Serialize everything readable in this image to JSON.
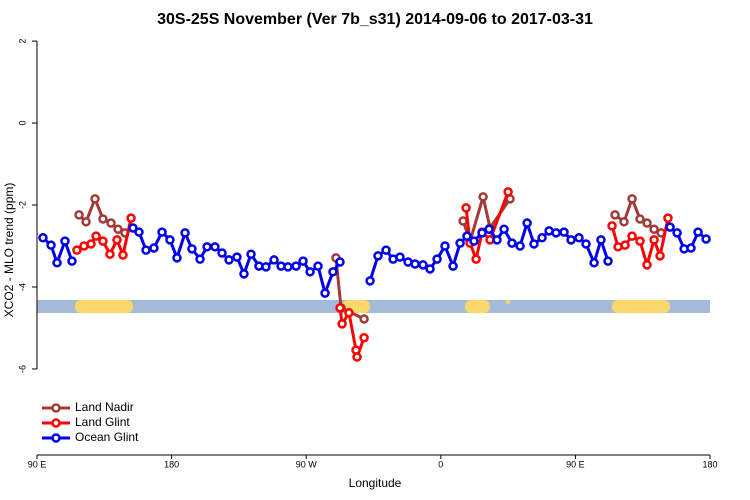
{
  "chart_data": {
    "type": "line",
    "title": "30S-25S November (Ver 7b_s31)   2014-09-06 to 2017-03-31",
    "x_label": "Longitude",
    "y_label": "XCO2 - MLO trend (ppm)",
    "xlim": [
      90,
      540
    ],
    "ylim": [
      -8.1,
      2.1
    ],
    "xticks": [
      {
        "value": 90,
        "label": "90 E"
      },
      180,
      {
        "value": 270,
        "label": "90 W"
      },
      {
        "value": 360,
        "label": "0"
      },
      {
        "value": 450,
        "label": "90 E"
      },
      {
        "value": 540,
        "label": "180"
      }
    ],
    "yticks": [
      2,
      0,
      -2,
      -4,
      -6
    ],
    "legend": "bottom-left",
    "series": [
      {
        "name": "Land Nadir",
        "color": "#a33a35",
        "x": [
          118.1,
          122.8,
          128.8,
          134.1,
          139.5,
          144.2,
          148.8,
          220,
          289.9,
          293.3,
          308.7,
          340,
          374.9,
          379.6,
          388.3,
          392.9,
          406.3,
          440,
          476.5,
          482.5,
          487.9,
          493.2,
          497.9,
          502.6,
          507.3
        ],
        "values": [
          -2.24,
          -2.41,
          -1.85,
          -2.34,
          -2.44,
          -2.59,
          -2.68,
          null,
          -3.29,
          -4.51,
          -4.78,
          null,
          -2.39,
          -2.88,
          -1.8,
          -2.56,
          -1.85,
          null,
          -2.24,
          -2.41,
          -1.85,
          -2.34,
          -2.44,
          -2.59,
          -2.68
        ]
      },
      {
        "name": "Land Glint",
        "color": "#ff0000",
        "x": [
          116.7,
          121.4,
          126.1,
          129.5,
          134.1,
          138.8,
          143.5,
          147.5,
          152.9,
          220,
          292.6,
          294.0,
          298.6,
          303.3,
          304.0,
          308.7,
          340,
          376.9,
          379.6,
          383.6,
          387.6,
          392.9,
          405.0,
          440,
          474.5,
          478.5,
          483.2,
          487.9,
          493.2,
          497.9,
          502.6,
          506.6,
          511.9
        ],
        "values": [
          -3.1,
          -3.0,
          -2.95,
          -2.76,
          -2.88,
          -3.2,
          -2.85,
          -3.22,
          -2.32,
          null,
          -4.51,
          -4.9,
          -4.63,
          -5.54,
          -5.71,
          -5.24,
          null,
          -2.07,
          -2.93,
          -3.32,
          -2.66,
          -2.85,
          -1.68,
          null,
          -2.51,
          -3.02,
          -2.98,
          -2.76,
          -2.88,
          -3.46,
          -2.85,
          -3.24,
          -2.32
        ]
      },
      {
        "name": "Ocean Glint",
        "color": "#0000ee",
        "x": [
          94.0,
          99.4,
          103.4,
          108.7,
          113.4,
          130,
          154.2,
          158.2,
          162.9,
          168.2,
          173.6,
          178.9,
          183.6,
          189.0,
          193.6,
          199.0,
          203.7,
          209.0,
          213.7,
          218.4,
          223.7,
          228.4,
          233.1,
          238.4,
          243.1,
          248.5,
          253.2,
          257.8,
          263.2,
          267.9,
          272.6,
          277.9,
          282.6,
          287.9,
          292.6,
          304.9,
          312.7,
          318.0,
          323.4,
          328.1,
          332.7,
          338.1,
          342.8,
          348.1,
          352.8,
          357.5,
          362.8,
          368.2,
          372.9,
          377.5,
          382.2,
          387.6,
          392.3,
          397.6,
          402.3,
          407.6,
          413.0,
          417.7,
          422.3,
          427.7,
          432.4,
          437.1,
          442.4,
          447.1,
          452.4,
          457.1,
          462.5,
          467.1,
          471.8,
          493.2,
          513.3,
          518.0,
          522.7,
          527.3,
          532.0,
          537.4
        ],
        "values": [
          -2.8,
          -2.98,
          -3.41,
          -2.88,
          -3.37,
          null,
          -2.56,
          -2.66,
          -3.1,
          -3.05,
          -2.66,
          -2.85,
          -3.29,
          -2.68,
          -3.07,
          -3.32,
          -3.02,
          -3.02,
          -3.17,
          -3.34,
          -3.27,
          -3.68,
          -3.2,
          -3.49,
          -3.51,
          -3.34,
          -3.49,
          -3.51,
          -3.49,
          -3.37,
          -3.63,
          -3.49,
          -4.15,
          -3.63,
          -3.39,
          null,
          -3.85,
          -3.24,
          -3.1,
          -3.32,
          -3.27,
          -3.39,
          -3.44,
          -3.46,
          -3.56,
          -3.32,
          -3.0,
          -3.49,
          -2.93,
          -2.76,
          -2.88,
          -2.68,
          -2.59,
          -2.85,
          -2.59,
          -2.93,
          -3.0,
          -2.44,
          -2.95,
          -2.8,
          -2.63,
          -2.68,
          -2.66,
          -2.85,
          -2.8,
          -2.95,
          -3.41,
          -2.85,
          -3.37,
          null,
          -2.54,
          -2.68,
          -3.07,
          -3.05,
          -2.66,
          -2.83
        ]
      }
    ]
  }
}
